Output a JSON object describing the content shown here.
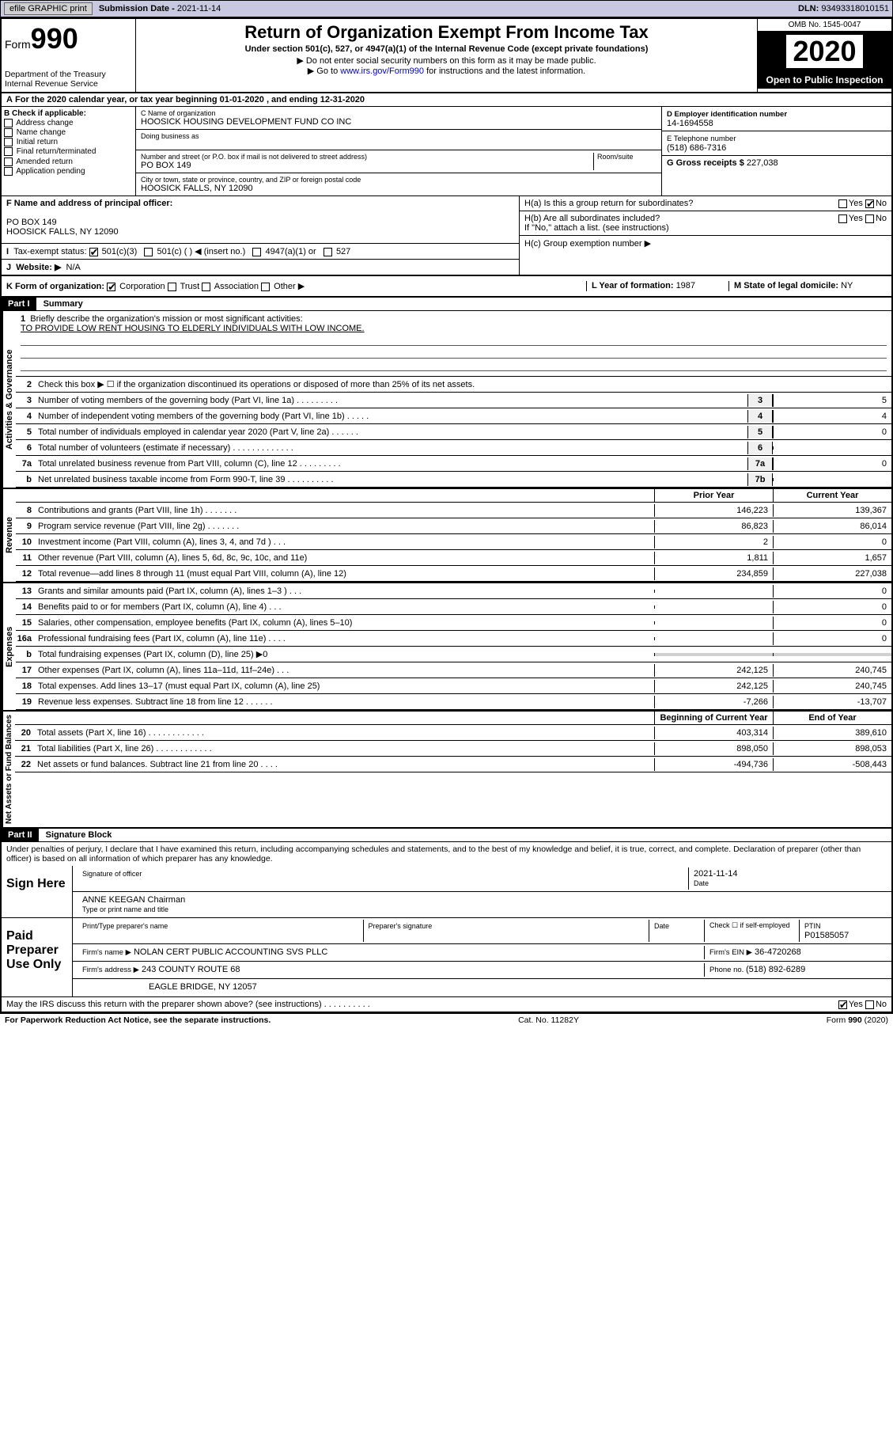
{
  "topbar": {
    "efile": "efile GRAPHIC print",
    "subdate_lbl": "Submission Date - ",
    "subdate": "2021-11-14",
    "dln_lbl": "DLN: ",
    "dln": "93493318010151"
  },
  "header": {
    "form": "Form",
    "num": "990",
    "dept": "Department of the Treasury\nInternal Revenue Service",
    "title": "Return of Organization Exempt From Income Tax",
    "sub": "Under section 501(c), 527, or 4947(a)(1) of the Internal Revenue Code (except private foundations)",
    "note1": "▶ Do not enter social security numbers on this form as it may be made public.",
    "note2a": "▶ Go to ",
    "note2link": "www.irs.gov/Form990",
    "note2b": " for instructions and the latest information.",
    "omb": "OMB No. 1545-0047",
    "year": "2020",
    "openpub": "Open to Public Inspection"
  },
  "A": {
    "txt": "For the 2020 calendar year, or tax year beginning 01-01-2020    , and ending 12-31-2020"
  },
  "B": {
    "lbl": "B Check if applicable:",
    "opts": [
      "Address change",
      "Name change",
      "Initial return",
      "Final return/terminated",
      "Amended return",
      "Application pending"
    ]
  },
  "C": {
    "name_lbl": "C Name of organization",
    "name": "HOOSICK HOUSING DEVELOPMENT FUND CO INC",
    "dba_lbl": "Doing business as",
    "addr_lbl": "Number and street (or P.O. box if mail is not delivered to street address)",
    "room_lbl": "Room/suite",
    "addr": "PO BOX 149",
    "city_lbl": "City or town, state or province, country, and ZIP or foreign postal code",
    "city": "HOOSICK FALLS, NY  12090"
  },
  "D": {
    "lbl": "D Employer identification number",
    "val": "14-1694558"
  },
  "E": {
    "lbl": "E Telephone number",
    "val": "(518) 686-7316"
  },
  "G": {
    "lbl": "G Gross receipts $ ",
    "val": "227,038"
  },
  "F": {
    "lbl": "F  Name and address of principal officer:",
    "addr1": "PO BOX 149",
    "addr2": "HOOSICK FALLS, NY  12090"
  },
  "H": {
    "a": "H(a)  Is this a group return for subordinates?",
    "b": "H(b)  Are all subordinates included?",
    "bnote": "If \"No,\" attach a list. (see instructions)",
    "c": "H(c)  Group exemption number ▶"
  },
  "I": {
    "lbl": "Tax-exempt status:",
    "opts": [
      "501(c)(3)",
      "501(c) (  ) ◀ (insert no.)",
      "4947(a)(1) or",
      "527"
    ]
  },
  "J": {
    "lbl": "Website: ▶",
    "val": "N/A"
  },
  "K": {
    "lbl": "K Form of organization:",
    "opts": [
      "Corporation",
      "Trust",
      "Association",
      "Other ▶"
    ]
  },
  "L": {
    "lbl": "L Year of formation: ",
    "val": "1987"
  },
  "M": {
    "lbl": "M State of legal domicile: ",
    "val": "NY"
  },
  "part1": {
    "hdr": "Part I",
    "title": "Summary",
    "l1": "Briefly describe the organization's mission or most significant activities:",
    "mission": "TO PROVIDE LOW RENT HOUSING TO ELDERLY INDIVIDUALS WITH LOW INCOME.",
    "l2": "Check this box ▶ ☐  if the organization discontinued its operations or disposed of more than 25% of its net assets.",
    "lines_gov": [
      {
        "n": "3",
        "t": "Number of voting members of the governing body (Part VI, line 1a)   .    .    .    .    .    .    .    .    .",
        "b": "3",
        "v": "5"
      },
      {
        "n": "4",
        "t": "Number of independent voting members of the governing body (Part VI, line 1b)   .    .    .    .    .",
        "b": "4",
        "v": "4"
      },
      {
        "n": "5",
        "t": "Total number of individuals employed in calendar year 2020 (Part V, line 2a)   .    .    .    .    .    .",
        "b": "5",
        "v": "0"
      },
      {
        "n": "6",
        "t": "Total number of volunteers (estimate if necessary)   .    .    .    .    .    .    .    .    .    .    .    .    .",
        "b": "6",
        "v": ""
      },
      {
        "n": "7a",
        "t": "Total unrelated business revenue from Part VIII, column (C), line 12   .    .    .    .    .    .    .    .    .",
        "b": "7a",
        "v": "0"
      },
      {
        "n": "b",
        "t": "Net unrelated business taxable income from Form 990-T, line 39   .    .    .    .    .    .    .    .    .    .",
        "b": "7b",
        "v": ""
      }
    ],
    "col_prior": "Prior Year",
    "col_curr": "Current Year",
    "rev": [
      {
        "n": "8",
        "t": "Contributions and grants (Part VIII, line 1h)   .    .    .    .    .    .    .",
        "p": "146,223",
        "c": "139,367"
      },
      {
        "n": "9",
        "t": "Program service revenue (Part VIII, line 2g)   .    .    .    .    .    .    .",
        "p": "86,823",
        "c": "86,014"
      },
      {
        "n": "10",
        "t": "Investment income (Part VIII, column (A), lines 3, 4, and 7d )   .    .    .",
        "p": "2",
        "c": "0"
      },
      {
        "n": "11",
        "t": "Other revenue (Part VIII, column (A), lines 5, 6d, 8c, 9c, 10c, and 11e)",
        "p": "1,811",
        "c": "1,657"
      },
      {
        "n": "12",
        "t": "Total revenue—add lines 8 through 11 (must equal Part VIII, column (A), line 12)",
        "p": "234,859",
        "c": "227,038"
      }
    ],
    "exp": [
      {
        "n": "13",
        "t": "Grants and similar amounts paid (Part IX, column (A), lines 1–3 )   .    .    .",
        "p": "",
        "c": "0"
      },
      {
        "n": "14",
        "t": "Benefits paid to or for members (Part IX, column (A), line 4)   .    .    .",
        "p": "",
        "c": "0"
      },
      {
        "n": "15",
        "t": "Salaries, other compensation, employee benefits (Part IX, column (A), lines 5–10)",
        "p": "",
        "c": "0"
      },
      {
        "n": "16a",
        "t": "Professional fundraising fees (Part IX, column (A), line 11e)   .    .    .    .",
        "p": "",
        "c": "0"
      },
      {
        "n": "b",
        "t": "Total fundraising expenses (Part IX, column (D), line 25) ▶0",
        "p": "GRAY",
        "c": "GRAY"
      },
      {
        "n": "17",
        "t": "Other expenses (Part IX, column (A), lines 11a–11d, 11f–24e)   .    .    .",
        "p": "242,125",
        "c": "240,745"
      },
      {
        "n": "18",
        "t": "Total expenses. Add lines 13–17 (must equal Part IX, column (A), line 25)",
        "p": "242,125",
        "c": "240,745"
      },
      {
        "n": "19",
        "t": "Revenue less expenses. Subtract line 18 from line 12   .    .    .    .    .    .",
        "p": "-7,266",
        "c": "-13,707"
      }
    ],
    "col_beg": "Beginning of Current Year",
    "col_end": "End of Year",
    "net": [
      {
        "n": "20",
        "t": "Total assets (Part X, line 16)   .    .    .    .    .    .    .    .    .    .    .    .",
        "p": "403,314",
        "c": "389,610"
      },
      {
        "n": "21",
        "t": "Total liabilities (Part X, line 26)  .    .    .    .    .    .    .    .    .    .    .    .",
        "p": "898,050",
        "c": "898,053"
      },
      {
        "n": "22",
        "t": "Net assets or fund balances. Subtract line 21 from line 20  .    .    .    .",
        "p": "-494,736",
        "c": "-508,443"
      }
    ],
    "side_gov": "Activities & Governance",
    "side_rev": "Revenue",
    "side_exp": "Expenses",
    "side_net": "Net Assets or Fund Balances"
  },
  "part2": {
    "hdr": "Part II",
    "title": "Signature Block",
    "penalty": "Under penalties of perjury, I declare that I have examined this return, including accompanying schedules and statements, and to the best of my knowledge and belief, it is true, correct, and complete. Declaration of preparer (other than officer) is based on all information of which preparer has any knowledge."
  },
  "sign": {
    "lbl": "Sign Here",
    "sig_lbl": "Signature of officer",
    "date_lbl": "Date",
    "date": "2021-11-14",
    "name": "ANNE KEEGAN  Chairman",
    "name_lbl": "Type or print name and title"
  },
  "paid": {
    "lbl": "Paid Preparer Use Only",
    "prep_name_lbl": "Print/Type preparer's name",
    "prep_sig_lbl": "Preparer's signature",
    "date_lbl": "Date",
    "check_lbl": "Check ☐ if self-employed",
    "ptin_lbl": "PTIN",
    "ptin": "P01585057",
    "firm_name_lbl": "Firm's name     ▶",
    "firm_name": "NOLAN CERT PUBLIC ACCOUNTING SVS PLLC",
    "firm_ein_lbl": "Firm's EIN ▶",
    "firm_ein": "36-4720268",
    "firm_addr_lbl": "Firm's address ▶",
    "firm_addr1": "243 COUNTY ROUTE 68",
    "firm_addr2": "EAGLE BRIDGE, NY  12057",
    "phone_lbl": "Phone no. ",
    "phone": "(518) 892-6289"
  },
  "discuss": "May the IRS discuss this return with the preparer shown above? (see instructions)   .    .    .    .    .    .    .    .    .    .",
  "footer": {
    "left": "For Paperwork Reduction Act Notice, see the separate instructions.",
    "mid": "Cat. No. 11282Y",
    "right": "Form 990 (2020)"
  }
}
